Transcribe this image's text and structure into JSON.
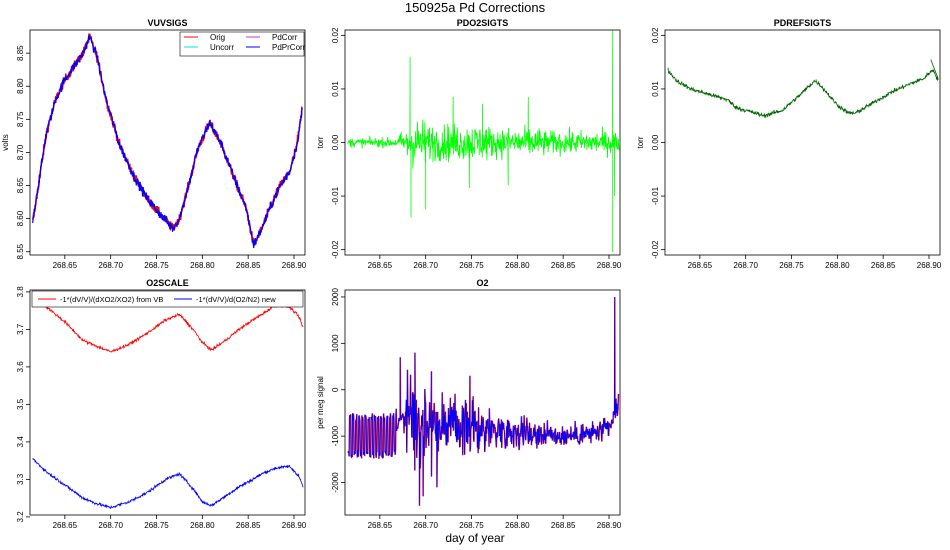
{
  "title": "150925a   Pd Corrections",
  "xlabel": "day of year",
  "chart_data": [
    {
      "id": "vuvsigs",
      "type": "line",
      "title": "VUVSIGS",
      "ylabel": "volts",
      "xlim": [
        268.612,
        268.912
      ],
      "ylim": [
        8.545,
        8.885
      ],
      "xticks": [
        268.65,
        268.7,
        268.75,
        268.8,
        268.85,
        268.9
      ],
      "xtick_labels": [
        "268.65",
        "268.70",
        "268.75",
        "268.80",
        "268.85",
        "268.90"
      ],
      "yticks": [
        8.55,
        8.6,
        8.65,
        8.7,
        8.75,
        8.8,
        8.85
      ],
      "ytick_labels": [
        "8.55",
        "8.60",
        "8.65",
        "8.70",
        "8.75",
        "8.80",
        "8.85"
      ],
      "noise": 0.007,
      "legend": [
        {
          "label": "Orig",
          "color": "#ff0000"
        },
        {
          "label": "PdCorr",
          "color": "#cc33cc"
        },
        {
          "label": "Uncorr",
          "color": "#00e5ee"
        },
        {
          "label": "PdPrCorr",
          "color": "#0000ff"
        }
      ],
      "series": [
        {
          "name": "Orig",
          "color": "#ff0000",
          "x": [
            268.615,
            268.62,
            268.63,
            268.64,
            268.65,
            268.66,
            268.67,
            268.677,
            268.685,
            268.695,
            268.71,
            268.725,
            268.74,
            268.755,
            268.768,
            268.775,
            268.785,
            268.795,
            268.808,
            268.82,
            268.835,
            268.848,
            268.856,
            268.865,
            268.875,
            268.885,
            268.895,
            268.903,
            268.909
          ],
          "y": [
            8.595,
            8.64,
            8.73,
            8.78,
            8.81,
            8.83,
            8.85,
            8.875,
            8.845,
            8.78,
            8.71,
            8.665,
            8.63,
            8.605,
            8.585,
            8.6,
            8.65,
            8.705,
            8.745,
            8.715,
            8.66,
            8.615,
            8.56,
            8.585,
            8.62,
            8.65,
            8.67,
            8.71,
            8.765
          ]
        },
        {
          "name": "PdPrCorr",
          "color": "#0000ff",
          "x": [
            268.615,
            268.62,
            268.63,
            268.64,
            268.65,
            268.66,
            268.67,
            268.677,
            268.685,
            268.695,
            268.71,
            268.725,
            268.74,
            268.755,
            268.768,
            268.775,
            268.785,
            268.795,
            268.808,
            268.82,
            268.835,
            268.848,
            268.856,
            268.865,
            268.875,
            268.885,
            268.895,
            268.903,
            268.909
          ],
          "y": [
            8.595,
            8.64,
            8.73,
            8.78,
            8.81,
            8.83,
            8.85,
            8.875,
            8.845,
            8.78,
            8.71,
            8.665,
            8.63,
            8.605,
            8.585,
            8.6,
            8.65,
            8.705,
            8.745,
            8.715,
            8.66,
            8.615,
            8.56,
            8.585,
            8.62,
            8.65,
            8.67,
            8.71,
            8.765
          ]
        }
      ]
    },
    {
      "id": "pdo2sigts",
      "type": "line",
      "title": "PDO2SIGTS",
      "ylabel": "torr",
      "xlim": [
        268.612,
        268.912
      ],
      "ylim": [
        -0.021,
        0.021
      ],
      "xticks": [
        268.65,
        268.7,
        268.75,
        268.8,
        268.85,
        268.9
      ],
      "xtick_labels": [
        "268.65",
        "268.70",
        "268.75",
        "268.80",
        "268.85",
        "268.90"
      ],
      "yticks": [
        -0.02,
        -0.01,
        0.0,
        0.01,
        0.02
      ],
      "ytick_labels": [
        "-0.02",
        "-0.01",
        "0.00",
        "0.01",
        "0.02"
      ],
      "series": [
        {
          "name": "PdO2",
          "color": "#00ff00",
          "noise_segments": [
            {
              "x": [
                268.615,
                268.67
              ],
              "amp": 0.0009
            },
            {
              "x": [
                268.67,
                268.68
              ],
              "amp": 0.002
            },
            {
              "x": [
                268.68,
                268.7
              ],
              "amp": 0.0045
            },
            {
              "x": [
                268.7,
                268.77
              ],
              "amp": 0.0035
            },
            {
              "x": [
                268.77,
                268.83
              ],
              "amp": 0.0028
            },
            {
              "x": [
                268.83,
                268.91
              ],
              "amp": 0.0022
            }
          ],
          "spikes": [
            {
              "x": 268.683,
              "y": 0.016
            },
            {
              "x": 268.684,
              "y": -0.014
            },
            {
              "x": 268.7,
              "y": -0.0125
            },
            {
              "x": 268.73,
              "y": 0.0085
            },
            {
              "x": 268.748,
              "y": -0.0085
            },
            {
              "x": 268.762,
              "y": 0.0072
            },
            {
              "x": 268.79,
              "y": -0.008
            },
            {
              "x": 268.812,
              "y": 0.0085
            },
            {
              "x": 268.904,
              "y": 0.021
            },
            {
              "x": 268.904,
              "y": -0.0205
            },
            {
              "x": 268.906,
              "y": -0.01
            }
          ]
        }
      ]
    },
    {
      "id": "pdrefsigts",
      "type": "line",
      "title": "PDREFSIGTS",
      "ylabel": "torr",
      "xlim": [
        268.612,
        268.912
      ],
      "ylim": [
        -0.021,
        0.021
      ],
      "xticks": [
        268.65,
        268.7,
        268.75,
        268.8,
        268.85,
        268.9
      ],
      "xtick_labels": [
        "268.65",
        "268.70",
        "268.75",
        "268.80",
        "268.85",
        "268.90"
      ],
      "yticks": [
        -0.02,
        -0.01,
        0.0,
        0.01,
        0.02
      ],
      "ytick_labels": [
        "-0.02",
        "-0.01",
        "0.00",
        "0.01",
        "0.02"
      ],
      "noise": 0.0004,
      "series": [
        {
          "name": "PdRef",
          "color": "#006400",
          "x": [
            268.615,
            268.625,
            268.64,
            268.66,
            268.68,
            268.69,
            268.7,
            268.72,
            268.74,
            268.76,
            268.775,
            268.78,
            268.79,
            268.8,
            268.812,
            268.82,
            268.84,
            268.86,
            268.88,
            268.895,
            268.9,
            268.905,
            268.91
          ],
          "y": [
            0.0135,
            0.0115,
            0.01,
            0.009,
            0.008,
            0.0065,
            0.006,
            0.005,
            0.006,
            0.009,
            0.0115,
            0.011,
            0.009,
            0.007,
            0.0055,
            0.0055,
            0.0075,
            0.0095,
            0.011,
            0.012,
            0.013,
            0.0135,
            0.0115
          ]
        }
      ]
    },
    {
      "id": "o2scale",
      "type": "line",
      "title": "O2SCALE",
      "xlim": [
        268.612,
        268.912
      ],
      "ylim": [
        3.205,
        3.805
      ],
      "xticks": [
        268.65,
        268.7,
        268.75,
        268.8,
        268.85,
        268.9
      ],
      "xtick_labels": [
        "268.65",
        "268.70",
        "268.75",
        "268.80",
        "268.85",
        "268.90"
      ],
      "yticks": [
        3.2,
        3.3,
        3.4,
        3.5,
        3.6,
        3.7,
        3.8
      ],
      "ytick_labels": [
        "3.2",
        "3.3",
        "3.4",
        "3.5",
        "3.6",
        "3.7",
        "3.8"
      ],
      "noise": 0.004,
      "legend": [
        {
          "label": "-1*(dV/V)/(dXO2/XO2) from VB",
          "color": "#ff0000"
        },
        {
          "label": "-1*(dV/V)/d(O2/N2) new",
          "color": "#0000ff"
        }
      ],
      "series": [
        {
          "name": "-1*(dV/V)/(dXO2/XO2) from VB",
          "color": "#ff0000",
          "x": [
            268.615,
            268.63,
            268.65,
            268.67,
            268.685,
            268.7,
            268.72,
            268.74,
            268.76,
            268.775,
            268.79,
            268.8,
            268.81,
            268.825,
            268.84,
            268.855,
            268.865,
            268.88,
            268.895,
            268.905,
            268.91
          ],
          "y": [
            3.8,
            3.76,
            3.72,
            3.67,
            3.655,
            3.64,
            3.66,
            3.69,
            3.725,
            3.74,
            3.7,
            3.665,
            3.645,
            3.67,
            3.7,
            3.725,
            3.74,
            3.765,
            3.76,
            3.735,
            3.705
          ]
        },
        {
          "name": "-1*(dV/V)/d(O2/N2) new",
          "color": "#0000ff",
          "x": [
            268.615,
            268.63,
            268.65,
            268.67,
            268.685,
            268.7,
            268.72,
            268.74,
            268.76,
            268.775,
            268.79,
            268.8,
            268.81,
            268.825,
            268.84,
            268.855,
            268.865,
            268.88,
            268.895,
            268.905,
            268.91
          ],
          "y": [
            3.355,
            3.32,
            3.285,
            3.25,
            3.235,
            3.225,
            3.24,
            3.265,
            3.3,
            3.315,
            3.275,
            3.24,
            3.23,
            3.255,
            3.28,
            3.3,
            3.315,
            3.33,
            3.335,
            3.31,
            3.28
          ]
        }
      ]
    },
    {
      "id": "o2",
      "type": "line",
      "title": "O2",
      "ylabel": "per meg signal",
      "xlim": [
        268.612,
        268.912
      ],
      "ylim": [
        -2700,
        2150
      ],
      "xticks": [
        268.65,
        268.7,
        268.75,
        268.8,
        268.85,
        268.9
      ],
      "xtick_labels": [
        "268.65",
        "268.70",
        "268.75",
        "268.80",
        "268.85",
        "268.90"
      ],
      "yticks": [
        -2000,
        -1000,
        0,
        1000,
        2000
      ],
      "ytick_labels": [
        "-2000",
        "-1000",
        "0",
        "1000",
        "2000"
      ],
      "series": [
        {
          "name": "O2 (red)",
          "color": "#ff0000",
          "offset": 1
        },
        {
          "name": "O2 (blue)",
          "color": "#0000ff",
          "offset": 0
        }
      ],
      "signal": {
        "x": [
          268.615,
          268.65,
          268.66,
          268.668,
          268.672,
          268.68,
          268.7,
          268.74,
          268.8,
          268.85,
          268.88,
          268.9,
          268.905,
          268.91
        ],
        "y": [
          -1000,
          -1000,
          -1000,
          -900,
          -600,
          -500,
          -700,
          -800,
          -900,
          -1000,
          -950,
          -850,
          -600,
          -300
        ],
        "noise_segments": [
          {
            "x": [
              268.615,
              268.668
            ],
            "amp": 500,
            "mode": "square"
          },
          {
            "x": [
              268.668,
              268.676
            ],
            "amp": 80,
            "mode": "noise"
          },
          {
            "x": [
              268.676,
              268.72
            ],
            "amp": 900,
            "mode": "noise"
          },
          {
            "x": [
              268.72,
              268.77
            ],
            "amp": 550,
            "mode": "noise"
          },
          {
            "x": [
              268.77,
              268.83
            ],
            "amp": 350,
            "mode": "noise"
          },
          {
            "x": [
              268.83,
              268.91
            ],
            "amp": 250,
            "mode": "noise"
          }
        ],
        "spikes": [
          {
            "x": 268.672,
            "y": 700
          },
          {
            "x": 268.683,
            "y": 0
          },
          {
            "x": 268.688,
            "y": 800
          },
          {
            "x": 268.693,
            "y": -2500
          },
          {
            "x": 268.697,
            "y": -2300
          },
          {
            "x": 268.706,
            "y": 400
          },
          {
            "x": 268.712,
            "y": -2100
          },
          {
            "x": 268.748,
            "y": 300
          },
          {
            "x": 268.906,
            "y": 2000
          },
          {
            "x": 268.903,
            "y": -700
          }
        ]
      }
    }
  ]
}
